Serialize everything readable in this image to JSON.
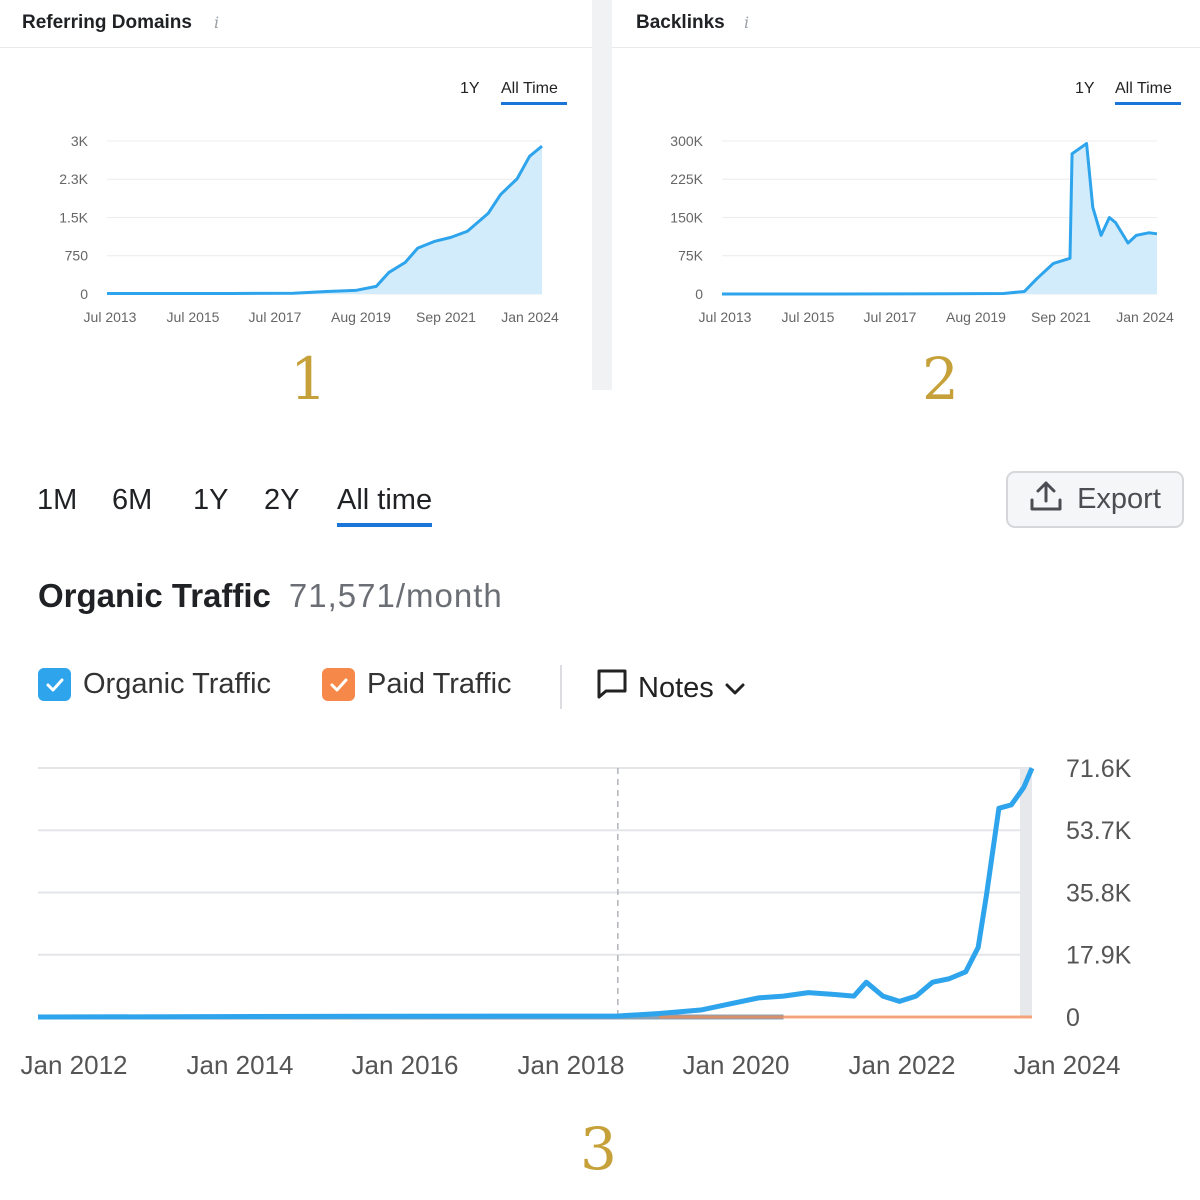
{
  "markers": [
    "1",
    "2",
    "3"
  ],
  "colors": {
    "line": "#2ea4ec",
    "fill": "#d2ecfb",
    "organic": "#2ea4ec",
    "paid": "#f6894a",
    "accent": "#1b74d7",
    "marker": "#c6a13a"
  },
  "panels": [
    {
      "title": "Referring Domains",
      "info_icon": "info-icon",
      "toggles": [
        "1Y",
        "All Time"
      ],
      "active_toggle": "All Time"
    },
    {
      "title": "Backlinks",
      "info_icon": "info-icon",
      "toggles": [
        "1Y",
        "All Time"
      ],
      "active_toggle": "All Time"
    }
  ],
  "traffic": {
    "tabs": [
      "1M",
      "6M",
      "1Y",
      "2Y",
      "All time"
    ],
    "active_tab": "All time",
    "export_label": "Export",
    "export_icon": "upload-icon",
    "title": "Organic Traffic",
    "value": "71,571/month",
    "legend": {
      "organic": "Organic Traffic",
      "paid": "Paid Traffic",
      "notes": "Notes"
    }
  },
  "chart_data": [
    {
      "type": "area",
      "title": "Referring Domains",
      "x_ticks": [
        "Jul 2013",
        "Jul 2015",
        "Jul 2017",
        "Aug 2019",
        "Sep 2021",
        "Jan 2024"
      ],
      "y_ticks": [
        "0",
        "750",
        "1.5K",
        "2.3K",
        "3K"
      ],
      "ylim": [
        0,
        3000
      ],
      "grid": true,
      "x": [
        2013.5,
        2015.0,
        2016.5,
        2018.0,
        2018.8,
        2019.5,
        2020.0,
        2020.3,
        2020.7,
        2021.0,
        2021.4,
        2021.8,
        2022.2,
        2022.7,
        2023.0,
        2023.4,
        2023.7,
        2024.0
      ],
      "values": [
        10,
        10,
        10,
        15,
        50,
        70,
        150,
        420,
        620,
        900,
        1030,
        1110,
        1230,
        1580,
        1950,
        2260,
        2700,
        2900
      ]
    },
    {
      "type": "area",
      "title": "Backlinks",
      "x_ticks": [
        "Jul 2013",
        "Jul 2015",
        "Jul 2017",
        "Aug 2019",
        "Sep 2021",
        "Jan 2024"
      ],
      "y_ticks": [
        "0",
        "75K",
        "150K",
        "225K",
        "300K"
      ],
      "ylim": [
        0,
        300000
      ],
      "grid": true,
      "x": [
        2013.5,
        2016.0,
        2019.0,
        2020.3,
        2020.8,
        2021.1,
        2021.5,
        2021.9,
        2021.95,
        2022.3,
        2022.45,
        2022.65,
        2022.85,
        2023.0,
        2023.3,
        2023.5,
        2023.8,
        2024.0
      ],
      "values": [
        0,
        0,
        500,
        1000,
        5000,
        30000,
        60000,
        70000,
        275000,
        295000,
        170000,
        115000,
        150000,
        140000,
        100000,
        115000,
        120000,
        118000
      ]
    },
    {
      "type": "line",
      "title": "Organic Traffic",
      "x_ticks": [
        "Jan 2012",
        "Jan 2014",
        "Jan 2016",
        "Jan 2018",
        "Jan 2020",
        "Jan 2022",
        "Jan 2024"
      ],
      "y_ticks": [
        "0",
        "17.9K",
        "35.8K",
        "53.7K",
        "71.6K"
      ],
      "ylim": [
        0,
        71600
      ],
      "grid": true,
      "annotation_x": 2019.0,
      "series": [
        {
          "name": "Organic Traffic",
          "x": [
            2012.0,
            2016.0,
            2019.0,
            2019.5,
            2020.0,
            2020.3,
            2020.7,
            2021.0,
            2021.3,
            2021.6,
            2021.85,
            2022.0,
            2022.2,
            2022.4,
            2022.6,
            2022.8,
            2023.0,
            2023.2,
            2023.35,
            2023.45,
            2023.6,
            2023.75,
            2023.9,
            2024.0
          ],
          "values": [
            0,
            200,
            300,
            1000,
            2000,
            3500,
            5500,
            6000,
            7000,
            6500,
            6000,
            10000,
            6000,
            4500,
            6000,
            10000,
            11000,
            13000,
            20000,
            35000,
            60000,
            61000,
            66000,
            71571
          ]
        },
        {
          "name": "Paid Traffic",
          "x": [
            2019.5,
            2024.0
          ],
          "values": [
            0,
            0
          ]
        }
      ]
    }
  ]
}
